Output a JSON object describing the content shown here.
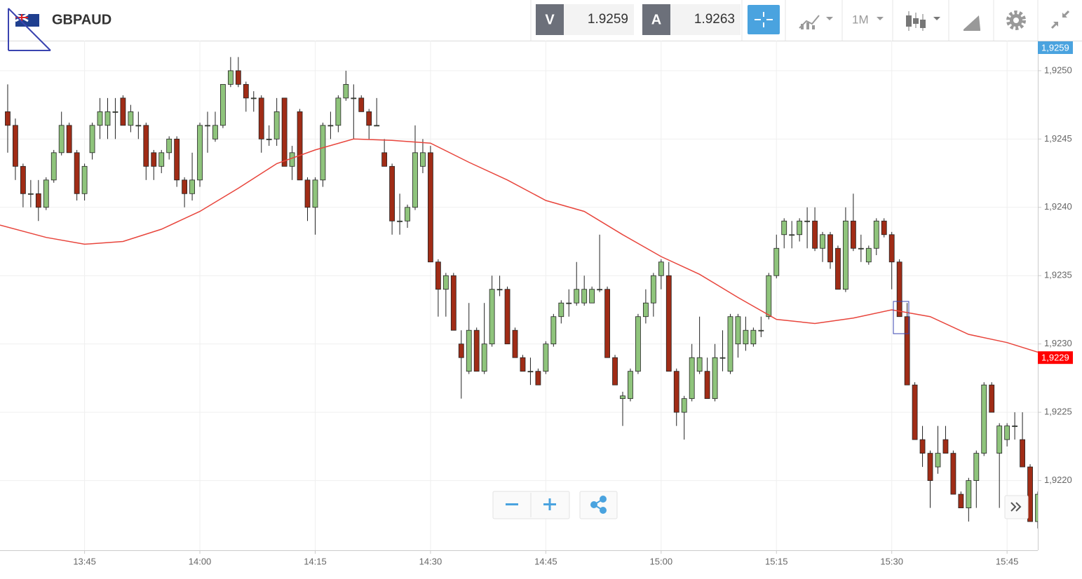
{
  "header": {
    "symbol": "GBPAUD",
    "bid_label": "V",
    "bid": 1.9259,
    "ask_label": "A",
    "ask": 1.9263,
    "timeframe": "1M"
  },
  "chart_data": {
    "type": "candlestick",
    "up_color": "#8fc47c",
    "down_color": "#a02c16",
    "grid": true,
    "xlim": [
      "13:34",
      "15:49"
    ],
    "xticks": [
      "13:45",
      "14:00",
      "14:15",
      "14:30",
      "14:45",
      "15:00",
      "15:15",
      "15:30",
      "15:45"
    ],
    "ylim": [
      1.92149,
      1.92522
    ],
    "yticks": [
      {
        "value": 1.922,
        "label": "1,9220"
      },
      {
        "value": 1.9225,
        "label": "1,9225"
      },
      {
        "value": 1.923,
        "label": "1,9230"
      },
      {
        "value": 1.9235,
        "label": "1,9235"
      },
      {
        "value": 1.924,
        "label": "1,9240"
      },
      {
        "value": 1.9245,
        "label": "1,9245"
      },
      {
        "value": 1.925,
        "label": "1,9250"
      }
    ],
    "price_labels": [
      {
        "value": 1.9259,
        "label": "1,9259",
        "color": "#4aa3df"
      },
      {
        "value": 1.9229,
        "label": "1,9229",
        "color": "#ff0000"
      }
    ],
    "x": [
      "13:35",
      "13:36",
      "13:37",
      "13:38",
      "13:39",
      "13:40",
      "13:41",
      "13:42",
      "13:43",
      "13:44",
      "13:45",
      "13:46",
      "13:47",
      "13:48",
      "13:49",
      "13:50",
      "13:51",
      "13:52",
      "13:53",
      "13:54",
      "13:55",
      "13:56",
      "13:57",
      "13:58",
      "13:59",
      "14:00",
      "14:01",
      "14:02",
      "14:03",
      "14:04",
      "14:05",
      "14:06",
      "14:07",
      "14:08",
      "14:09",
      "14:10",
      "14:11",
      "14:12",
      "14:13",
      "14:14",
      "14:15",
      "14:16",
      "14:17",
      "14:18",
      "14:19",
      "14:20",
      "14:21",
      "14:22",
      "14:23",
      "14:24",
      "14:25",
      "14:26",
      "14:27",
      "14:28",
      "14:29",
      "14:30",
      "14:31",
      "14:32",
      "14:33",
      "14:34",
      "14:35",
      "14:36",
      "14:37",
      "14:38",
      "14:39",
      "14:40",
      "14:41",
      "14:42",
      "14:43",
      "14:44",
      "14:45",
      "14:46",
      "14:47",
      "14:48",
      "14:49",
      "14:50",
      "14:51",
      "14:52",
      "14:53",
      "14:54",
      "14:55",
      "14:56",
      "14:57",
      "14:58",
      "14:59",
      "15:00",
      "15:01",
      "15:02",
      "15:03",
      "15:04",
      "15:05",
      "15:06",
      "15:07",
      "15:08",
      "15:09",
      "15:10",
      "15:11",
      "15:12",
      "15:13",
      "15:14",
      "15:15",
      "15:16",
      "15:17",
      "15:18",
      "15:19",
      "15:20",
      "15:21",
      "15:22",
      "15:23",
      "15:24",
      "15:25",
      "15:26",
      "15:27",
      "15:28",
      "15:29",
      "15:30",
      "15:31",
      "15:32",
      "15:33",
      "15:34",
      "15:35",
      "15:36",
      "15:37",
      "15:38",
      "15:39",
      "15:40",
      "15:41",
      "15:42",
      "15:43",
      "15:44",
      "15:45",
      "15:46",
      "15:47",
      "15:48",
      "15:49"
    ],
    "open": [
      1.9247,
      1.9246,
      1.9243,
      1.9241,
      1.9241,
      1.924,
      1.9242,
      1.9244,
      1.9246,
      1.9244,
      1.9241,
      1.9244,
      1.9246,
      1.9246,
      1.9247,
      1.9248,
      1.9246,
      1.9246,
      1.9246,
      1.9244,
      1.9243,
      1.9244,
      1.9245,
      1.9242,
      1.9241,
      1.9242,
      1.9246,
      1.9245,
      1.9246,
      1.9249,
      1.925,
      1.9249,
      1.9248,
      1.9248,
      1.9245,
      1.9245,
      1.9248,
      1.9243,
      1.9247,
      1.9242,
      1.924,
      1.9242,
      1.9246,
      1.9246,
      1.9248,
      1.9248,
      1.9248,
      1.9247,
      1.9246,
      1.9244,
      1.9243,
      1.9239,
      1.9239,
      1.924,
      1.9243,
      1.9244,
      1.9236,
      1.9234,
      1.9235,
      1.923,
      1.9228,
      1.9231,
      1.9228,
      1.923,
      1.9234,
      1.9234,
      1.9231,
      1.9229,
      1.9228,
      1.9228,
      1.9228,
      1.923,
      1.9232,
      1.9233,
      1.9233,
      1.9233,
      1.9233,
      1.9234,
      1.9234,
      1.9229,
      1.9226,
      1.9226,
      1.9228,
      1.9232,
      1.9233,
      1.9235,
      1.9235,
      1.9228,
      1.9225,
      1.9226,
      1.9228,
      1.9228,
      1.9226,
      1.9229,
      1.9228,
      1.923,
      1.923,
      1.923,
      1.9231,
      1.9232,
      1.9235,
      1.9238,
      1.9238,
      1.9238,
      1.9239,
      1.9239,
      1.9237,
      1.9238,
      1.9237,
      1.9234,
      1.9239,
      1.9237,
      1.9236,
      1.9237,
      1.9239,
      1.9238,
      1.9236,
      1.9232,
      1.9227,
      1.9223,
      1.9222,
      1.9221,
      1.9223,
      1.9222,
      1.9219,
      1.9218,
      1.922,
      1.9222,
      1.9227,
      1.9222,
      1.9223,
      1.9224,
      1.9223,
      1.9221,
      1.9217
    ],
    "high": [
      1.9249,
      1.92465,
      1.92432,
      1.9242,
      1.9242,
      1.92422,
      1.92442,
      1.9247,
      1.92462,
      1.92442,
      1.92432,
      1.92462,
      1.9248,
      1.9248,
      1.9248,
      1.92482,
      1.92475,
      1.9247,
      1.92462,
      1.92442,
      1.92442,
      1.92452,
      1.92452,
      1.92422,
      1.9244,
      1.92462,
      1.9247,
      1.9247,
      1.9249,
      1.9251,
      1.9251,
      1.92492,
      1.92485,
      1.92482,
      1.9246,
      1.9248,
      1.9248,
      1.92445,
      1.92472,
      1.92422,
      1.92422,
      1.92462,
      1.9247,
      1.92482,
      1.925,
      1.9249,
      1.92482,
      1.92472,
      1.9248,
      1.9245,
      1.92432,
      1.9241,
      1.92402,
      1.9246,
      1.9245,
      1.92445,
      1.92362,
      1.92352,
      1.92352,
      1.9231,
      1.9233,
      1.92312,
      1.9233,
      1.9235,
      1.9235,
      1.92342,
      1.92312,
      1.92292,
      1.9229,
      1.92282,
      1.92302,
      1.92322,
      1.92332,
      1.9234,
      1.9236,
      1.9235,
      1.92342,
      1.9238,
      1.92342,
      1.92292,
      1.92265,
      1.92282,
      1.92322,
      1.9234,
      1.92352,
      1.92362,
      1.9236,
      1.92282,
      1.92262,
      1.923,
      1.9232,
      1.9229,
      1.923,
      1.9231,
      1.92322,
      1.92322,
      1.9232,
      1.92312,
      1.9232,
      1.92352,
      1.9238,
      1.92392,
      1.9239,
      1.92392,
      1.924,
      1.924,
      1.92382,
      1.92382,
      1.92372,
      1.924,
      1.9241,
      1.9238,
      1.92372,
      1.92392,
      1.92392,
      1.92382,
      1.92362,
      1.9233,
      1.92272,
      1.9224,
      1.92222,
      1.9224,
      1.9224,
      1.92222,
      1.92192,
      1.92202,
      1.92222,
      1.92272,
      1.92272,
      1.92242,
      1.92242,
      1.9225,
      1.9225,
      1.92212,
      1.92192
    ],
    "low": [
      1.9244,
      1.9242,
      1.924,
      1.924,
      1.9239,
      1.92398,
      1.92418,
      1.92438,
      1.9244,
      1.92405,
      1.92405,
      1.92435,
      1.9245,
      1.9245,
      1.9245,
      1.9246,
      1.92455,
      1.9245,
      1.9242,
      1.9242,
      1.92425,
      1.92435,
      1.92415,
      1.924,
      1.92405,
      1.92415,
      1.9244,
      1.92448,
      1.92458,
      1.92488,
      1.92488,
      1.9247,
      1.9247,
      1.9244,
      1.92445,
      1.92445,
      1.9243,
      1.9242,
      1.9242,
      1.9239,
      1.9238,
      1.92415,
      1.9245,
      1.92455,
      1.92478,
      1.9245,
      1.9247,
      1.9245,
      1.9246,
      1.9243,
      1.9238,
      1.9238,
      1.92385,
      1.92398,
      1.92425,
      1.9236,
      1.9232,
      1.9232,
      1.9231,
      1.9226,
      1.92278,
      1.9228,
      1.92278,
      1.92298,
      1.92335,
      1.923,
      1.9229,
      1.9228,
      1.9227,
      1.9227,
      1.92278,
      1.92298,
      1.92315,
      1.9232,
      1.92328,
      1.92328,
      1.9233,
      1.92338,
      1.9229,
      1.9227,
      1.9224,
      1.92258,
      1.92278,
      1.92315,
      1.9232,
      1.9234,
      1.9228,
      1.9224,
      1.9223,
      1.92258,
      1.92278,
      1.9226,
      1.92258,
      1.9228,
      1.92278,
      1.9229,
      1.92295,
      1.92298,
      1.92305,
      1.92318,
      1.92348,
      1.9237,
      1.9237,
      1.92375,
      1.9237,
      1.92368,
      1.9236,
      1.92355,
      1.9234,
      1.92338,
      1.92368,
      1.9236,
      1.92358,
      1.92365,
      1.92378,
      1.9234,
      1.9232,
      1.9227,
      1.9223,
      1.9221,
      1.9218,
      1.92205,
      1.9222,
      1.9219,
      1.9218,
      1.9217,
      1.9218,
      1.92218,
      1.9225,
      1.9218,
      1.92225,
      1.9223,
      1.9221,
      1.9217,
      1.92165
    ],
    "close": [
      1.9246,
      1.9243,
      1.9241,
      1.9241,
      1.924,
      1.9242,
      1.9244,
      1.9246,
      1.9244,
      1.9241,
      1.9243,
      1.9246,
      1.9247,
      1.9247,
      1.9247,
      1.9246,
      1.9247,
      1.9246,
      1.9243,
      1.9243,
      1.9244,
      1.9245,
      1.9242,
      1.9241,
      1.9242,
      1.9246,
      1.9246,
      1.9246,
      1.9249,
      1.925,
      1.9249,
      1.9248,
      1.9248,
      1.9245,
      1.9245,
      1.9247,
      1.9243,
      1.9244,
      1.9242,
      1.924,
      1.9242,
      1.9246,
      1.9246,
      1.9248,
      1.9249,
      1.9248,
      1.9247,
      1.9246,
      1.9246,
      1.9243,
      1.9239,
      1.9239,
      1.924,
      1.9244,
      1.9244,
      1.9236,
      1.9234,
      1.9235,
      1.9231,
      1.9229,
      1.9231,
      1.9228,
      1.923,
      1.9234,
      1.9234,
      1.923,
      1.9229,
      1.9228,
      1.9228,
      1.9227,
      1.923,
      1.9232,
      1.9233,
      1.9233,
      1.9234,
      1.9234,
      1.9234,
      1.9234,
      1.9229,
      1.9227,
      1.92262,
      1.9228,
      1.9232,
      1.9233,
      1.9235,
      1.9236,
      1.9228,
      1.9225,
      1.9226,
      1.9229,
      1.9229,
      1.9226,
      1.9229,
      1.9229,
      1.9232,
      1.9232,
      1.9231,
      1.9231,
      1.9231,
      1.9235,
      1.9237,
      1.9239,
      1.9238,
      1.9239,
      1.9239,
      1.9237,
      1.9238,
      1.9236,
      1.9234,
      1.9239,
      1.9237,
      1.9237,
      1.9237,
      1.9239,
      1.9238,
      1.9236,
      1.9232,
      1.9227,
      1.9223,
      1.9222,
      1.922,
      1.9222,
      1.9222,
      1.9219,
      1.9218,
      1.922,
      1.9222,
      1.9227,
      1.9225,
      1.9224,
      1.9224,
      1.9224,
      1.9221,
      1.9217,
      1.9219
    ],
    "moving_average": {
      "color": "#e8453c",
      "x": [
        "13:34",
        "13:40",
        "13:45",
        "13:50",
        "13:55",
        "14:00",
        "14:05",
        "14:10",
        "14:15",
        "14:20",
        "14:25",
        "14:30",
        "14:35",
        "14:40",
        "14:45",
        "14:50",
        "14:55",
        "15:00",
        "15:05",
        "15:10",
        "15:15",
        "15:20",
        "15:25",
        "15:30",
        "15:35",
        "15:40",
        "15:45",
        "15:49"
      ],
      "values": [
        1.92387,
        1.92378,
        1.92373,
        1.92375,
        1.92384,
        1.92397,
        1.92414,
        1.92432,
        1.92442,
        1.9245,
        1.92449,
        1.92447,
        1.92433,
        1.9242,
        1.92405,
        1.92397,
        1.9238,
        1.92364,
        1.92351,
        1.92334,
        1.92318,
        1.92315,
        1.92319,
        1.92325,
        1.9232,
        1.92307,
        1.92301,
        1.92294
      ]
    }
  }
}
